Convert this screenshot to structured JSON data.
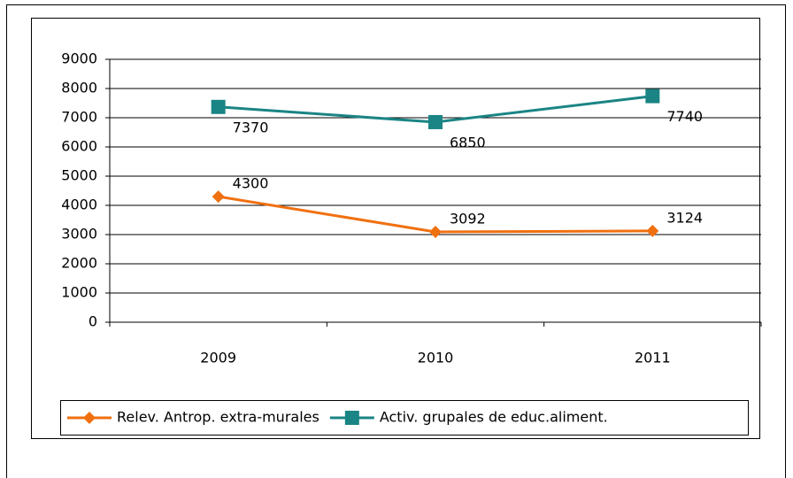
{
  "chart_data": {
    "type": "line",
    "categories": [
      "2009",
      "2010",
      "2011"
    ],
    "series": [
      {
        "name": "Relev. Antrop. extra-murales",
        "color": "#f07010",
        "marker": "diamond",
        "values": [
          4300,
          3092,
          3124
        ]
      },
      {
        "name": "Activ. grupales de educ.aliment.",
        "color": "#1b8484",
        "marker": "square",
        "values": [
          7370,
          6850,
          7740
        ]
      }
    ],
    "ylim": [
      0,
      9000
    ],
    "yticks": [
      0,
      1000,
      2000,
      3000,
      4000,
      5000,
      6000,
      7000,
      8000,
      9000
    ],
    "grid": true,
    "legend": "bottom"
  }
}
